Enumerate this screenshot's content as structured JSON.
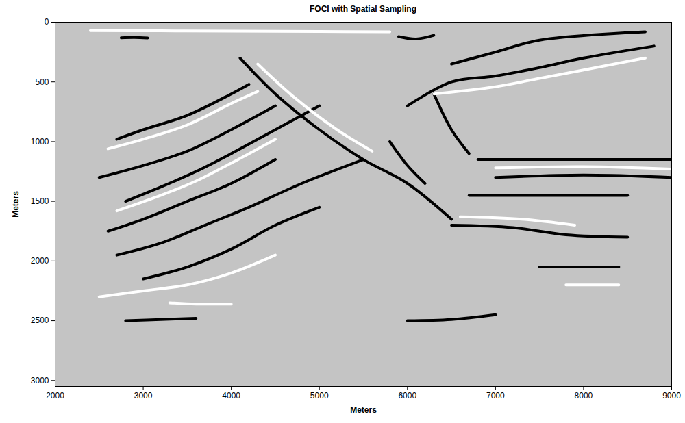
{
  "chart_data": {
    "type": "line",
    "title": "FOCI with Spatial Sampling",
    "x_label": "Meters",
    "y_label": "Meters",
    "xlim": [
      2000,
      9000
    ],
    "xticks": [
      2000,
      3000,
      4000,
      5000,
      6000,
      7000,
      8000,
      9000
    ],
    "ylim": [
      0,
      3050
    ],
    "yticks": [
      0,
      500,
      1000,
      1500,
      2000,
      2500,
      3000
    ],
    "grid": false,
    "series": [
      {
        "color": "#ffffff",
        "x": [
          2400,
          3200,
          4000,
          5000,
          5800
        ],
        "values": [
          70,
          72,
          75,
          78,
          80
        ]
      },
      {
        "color": "#000000",
        "x": [
          2750,
          2900,
          3050
        ],
        "values": [
          130,
          128,
          132
        ]
      },
      {
        "color": "#000000",
        "x": [
          2700,
          3000,
          3500,
          4000,
          4200
        ],
        "values": [
          980,
          900,
          780,
          600,
          520
        ]
      },
      {
        "color": "#ffffff",
        "x": [
          2600,
          3000,
          3500,
          4000,
          4300
        ],
        "values": [
          1060,
          980,
          860,
          680,
          580
        ]
      },
      {
        "color": "#000000",
        "x": [
          2500,
          3000,
          3500,
          4000,
          4500
        ],
        "values": [
          1300,
          1200,
          1080,
          900,
          700
        ]
      },
      {
        "color": "#000000",
        "x": [
          2800,
          3200,
          3600,
          4000,
          4500,
          5000
        ],
        "values": [
          1500,
          1380,
          1250,
          1100,
          900,
          700
        ]
      },
      {
        "color": "#ffffff",
        "x": [
          2700,
          3200,
          3600,
          4000,
          4500
        ],
        "values": [
          1580,
          1450,
          1330,
          1180,
          980
        ]
      },
      {
        "color": "#000000",
        "x": [
          2600,
          3000,
          3500,
          4000,
          4500
        ],
        "values": [
          1750,
          1650,
          1500,
          1350,
          1150
        ]
      },
      {
        "color": "#000000",
        "x": [
          2700,
          3200,
          3700,
          4200,
          4800,
          5500
        ],
        "values": [
          1950,
          1850,
          1700,
          1550,
          1350,
          1150
        ]
      },
      {
        "color": "#000000",
        "x": [
          3000,
          3500,
          4000,
          4500,
          5000
        ],
        "values": [
          2150,
          2050,
          1900,
          1700,
          1550
        ]
      },
      {
        "color": "#ffffff",
        "x": [
          2500,
          3000,
          3500,
          4000,
          4500
        ],
        "values": [
          2300,
          2250,
          2200,
          2100,
          1950
        ]
      },
      {
        "color": "#ffffff",
        "x": [
          3300,
          3600,
          4000
        ],
        "values": [
          2350,
          2360,
          2360
        ]
      },
      {
        "color": "#000000",
        "x": [
          2800,
          3200,
          3600
        ],
        "values": [
          2500,
          2490,
          2480
        ]
      },
      {
        "color": "#000000",
        "x": [
          4100,
          4500,
          5000,
          5500,
          6000,
          6500
        ],
        "values": [
          300,
          600,
          900,
          1150,
          1350,
          1650
        ]
      },
      {
        "color": "#ffffff",
        "x": [
          4300,
          4700,
          5200,
          5600
        ],
        "values": [
          350,
          620,
          900,
          1080
        ]
      },
      {
        "color": "#000000",
        "x": [
          5800,
          6000,
          6200
        ],
        "values": [
          1000,
          1200,
          1350
        ]
      },
      {
        "color": "#000000",
        "x": [
          6300,
          6500,
          6700
        ],
        "values": [
          600,
          900,
          1100
        ]
      },
      {
        "color": "#000000",
        "x": [
          5900,
          6100,
          6300
        ],
        "values": [
          120,
          140,
          110
        ]
      },
      {
        "color": "#000000",
        "x": [
          6000,
          6500,
          7000,
          7500,
          8000,
          8800
        ],
        "values": [
          700,
          500,
          450,
          380,
          300,
          200
        ]
      },
      {
        "color": "#ffffff",
        "x": [
          6300,
          7000,
          7500,
          8000,
          8700
        ],
        "values": [
          600,
          540,
          470,
          400,
          300
        ]
      },
      {
        "color": "#000000",
        "x": [
          6500,
          7000,
          7500,
          8700
        ],
        "values": [
          350,
          250,
          150,
          80
        ]
      },
      {
        "color": "#000000",
        "x": [
          6800,
          7500,
          8000,
          9000
        ],
        "values": [
          1150,
          1150,
          1150,
          1150
        ]
      },
      {
        "color": "#000000",
        "x": [
          7000,
          8000,
          9000
        ],
        "values": [
          1300,
          1280,
          1300
        ]
      },
      {
        "color": "#ffffff",
        "x": [
          7000,
          8000,
          9000
        ],
        "values": [
          1220,
          1210,
          1230
        ]
      },
      {
        "color": "#000000",
        "x": [
          6700,
          7500,
          8500
        ],
        "values": [
          1450,
          1450,
          1450
        ]
      },
      {
        "color": "#000000",
        "x": [
          6500,
          7200,
          7800,
          8500
        ],
        "values": [
          1700,
          1720,
          1780,
          1800
        ]
      },
      {
        "color": "#ffffff",
        "x": [
          6600,
          7300,
          7900
        ],
        "values": [
          1630,
          1650,
          1700
        ]
      },
      {
        "color": "#000000",
        "x": [
          7500,
          8200,
          8400
        ],
        "values": [
          2050,
          2050,
          2050
        ]
      },
      {
        "color": "#ffffff",
        "x": [
          7800,
          8400
        ],
        "values": [
          2200,
          2200
        ]
      },
      {
        "color": "#000000",
        "x": [
          6000,
          6500,
          7000
        ],
        "values": [
          2500,
          2490,
          2450
        ]
      }
    ]
  }
}
